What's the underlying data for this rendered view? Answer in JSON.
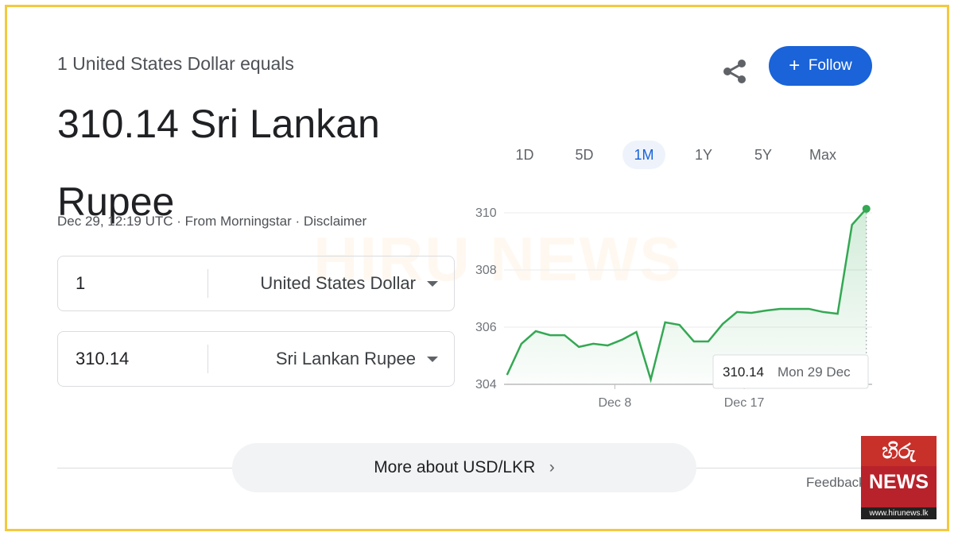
{
  "header": {
    "equals": "1 United States Dollar equals",
    "headline": "310.14 Sri Lankan Rupee",
    "meta": "Dec 29, 12:19 UTC · From Morningstar · Disclaimer"
  },
  "converter": [
    {
      "amount": "1",
      "currency": "United States Dollar"
    },
    {
      "amount": "310.14",
      "currency": "Sri Lankan Rupee"
    }
  ],
  "follow": "Follow",
  "ranges": [
    "1D",
    "5D",
    "1M",
    "1Y",
    "5Y",
    "Max"
  ],
  "selected_range": "1M",
  "tooltip_date": "Mon 29 Dec",
  "more": "More about USD/LKR",
  "feedback": "Feedback",
  "watermark": "HIRU NEWS",
  "logo": {
    "top": "හිරු",
    "middle": "NEWS",
    "url": "www.hirunews.lk"
  },
  "chart_data": {
    "type": "line",
    "x": [
      0,
      1,
      2,
      3,
      4,
      5,
      6,
      7,
      8,
      9,
      10,
      11,
      12,
      13,
      14,
      15,
      16,
      17,
      18,
      19,
      20,
      21,
      22,
      23,
      24,
      25
    ],
    "series": [
      {
        "color": "#34a853",
        "values": [
          304.33,
          305.42,
          305.86,
          305.72,
          305.72,
          305.31,
          305.42,
          305.36,
          305.56,
          305.83,
          304.17,
          306.17,
          306.08,
          305.5,
          305.5,
          306.11,
          306.53,
          306.5,
          306.58,
          306.64,
          306.64,
          306.64,
          306.53,
          306.47,
          309.58,
          310.14
        ]
      }
    ],
    "xlim": [
      -2.2,
      25.4
    ],
    "xticks": [
      {
        "value": 7.5,
        "label": "Dec 8"
      },
      {
        "value": 16.5,
        "label": "Dec 17"
      }
    ],
    "ylim": [
      304,
      310.25
    ],
    "yticks": [
      304,
      306,
      308,
      310
    ],
    "grid": true
  }
}
